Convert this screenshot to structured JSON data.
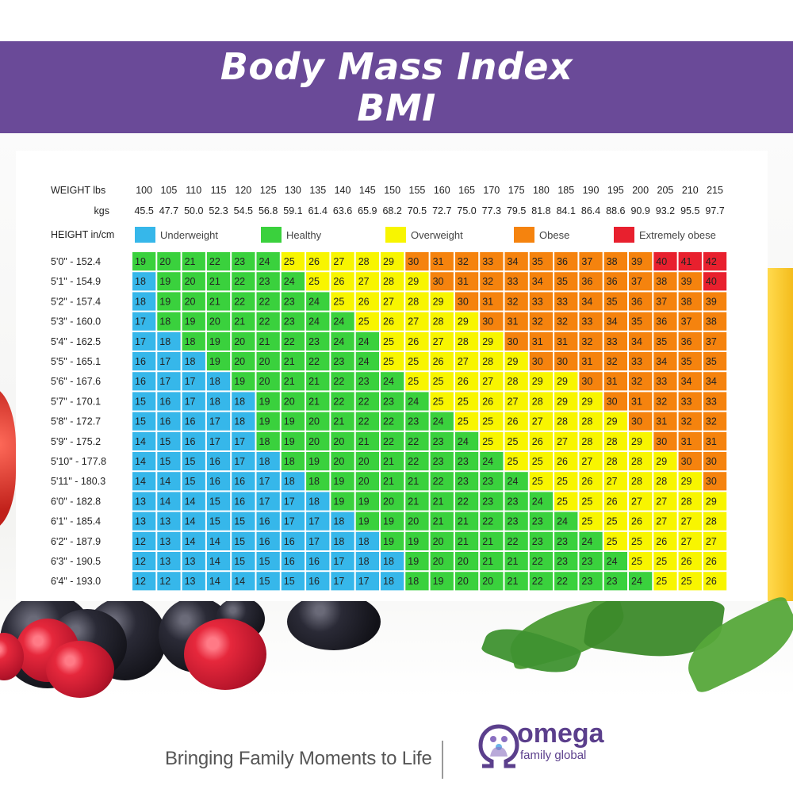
{
  "title": {
    "line1": "Body Mass Index",
    "line2": "BMI"
  },
  "footer": {
    "tagline": "Bringing Family Moments to Life",
    "logo_word": "omega",
    "logo_sub": "family global"
  },
  "colors": {
    "banner": "#6a4a98",
    "underweight": "#36b7ea",
    "healthy": "#3ad13d",
    "overweight": "#f8f500",
    "obese": "#f5830e",
    "extremely_obese": "#e8202e"
  },
  "chart_data": {
    "type": "table",
    "weight_header": "WEIGHT lbs",
    "kgs_header": "kgs",
    "height_header": "HEIGHT in/cm",
    "lbs": [
      "100",
      "105",
      "110",
      "115",
      "120",
      "125",
      "130",
      "135",
      "140",
      "145",
      "150",
      "155",
      "160",
      "165",
      "170",
      "175",
      "180",
      "185",
      "190",
      "195",
      "200",
      "205",
      "210",
      "215"
    ],
    "kgs": [
      "45.5",
      "47.7",
      "50.0",
      "52.3",
      "54.5",
      "56.8",
      "59.1",
      "61.4",
      "63.6",
      "65.9",
      "68.2",
      "70.5",
      "72.7",
      "75.0",
      "77.3",
      "79.5",
      "81.8",
      "84.1",
      "86.4",
      "88.6",
      "90.9",
      "93.2",
      "95.5",
      "97.7"
    ],
    "legend": [
      {
        "label": "Underweight",
        "category": "underweight"
      },
      {
        "label": "Healthy",
        "category": "healthy"
      },
      {
        "label": "Overweight",
        "category": "overweight"
      },
      {
        "label": "Obese",
        "category": "obese"
      },
      {
        "label": "Extremely obese",
        "category": "extremely_obese"
      }
    ],
    "heights": [
      "5'0\"  -  152.4",
      "5'1\"  -  154.9",
      "5'2\"  -  157.4",
      "5'3\"  -  160.0",
      "5'4\"  -  162.5",
      "5'5\"  -  165.1",
      "5'6\"  -  167.6",
      "5'7\"  -  170.1",
      "5'8\"  -  172.7",
      "5'9\"  -  175.2",
      "5'10\" - 177.8",
      "5'11\" - 180.3",
      "6'0\"  -  182.8",
      "6'1\"  -  185.4",
      "6'2\"  -  187.9",
      "6'3\"  -  190.5",
      "6'4\"  -  193.0"
    ],
    "values": [
      [
        19,
        20,
        21,
        22,
        23,
        24,
        25,
        26,
        27,
        28,
        29,
        30,
        31,
        32,
        33,
        34,
        35,
        36,
        37,
        38,
        39,
        40,
        41,
        42
      ],
      [
        18,
        19,
        20,
        21,
        22,
        23,
        24,
        25,
        26,
        27,
        28,
        29,
        30,
        31,
        32,
        33,
        34,
        35,
        36,
        36,
        37,
        38,
        39,
        40
      ],
      [
        18,
        19,
        20,
        21,
        22,
        22,
        23,
        24,
        25,
        26,
        27,
        28,
        29,
        30,
        31,
        32,
        33,
        33,
        34,
        35,
        36,
        37,
        38,
        39
      ],
      [
        17,
        18,
        19,
        20,
        21,
        22,
        23,
        24,
        24,
        25,
        26,
        27,
        28,
        29,
        30,
        31,
        32,
        32,
        33,
        34,
        35,
        36,
        37,
        38
      ],
      [
        17,
        18,
        18,
        19,
        20,
        21,
        22,
        23,
        24,
        24,
        25,
        26,
        27,
        28,
        29,
        30,
        31,
        31,
        32,
        33,
        34,
        35,
        36,
        37
      ],
      [
        16,
        17,
        18,
        19,
        20,
        20,
        21,
        22,
        23,
        24,
        25,
        25,
        26,
        27,
        28,
        29,
        30,
        30,
        31,
        32,
        33,
        34,
        35,
        35
      ],
      [
        16,
        17,
        17,
        18,
        19,
        20,
        21,
        21,
        22,
        23,
        24,
        25,
        25,
        26,
        27,
        28,
        29,
        29,
        30,
        31,
        32,
        33,
        34,
        34
      ],
      [
        15,
        16,
        17,
        18,
        18,
        19,
        20,
        21,
        22,
        22,
        23,
        24,
        25,
        25,
        26,
        27,
        28,
        29,
        29,
        30,
        31,
        32,
        33,
        33
      ],
      [
        15,
        16,
        16,
        17,
        18,
        19,
        19,
        20,
        21,
        22,
        22,
        23,
        24,
        25,
        25,
        26,
        27,
        28,
        28,
        29,
        30,
        31,
        32,
        32
      ],
      [
        14,
        15,
        16,
        17,
        17,
        18,
        19,
        20,
        20,
        21,
        22,
        22,
        23,
        24,
        25,
        25,
        26,
        27,
        28,
        28,
        29,
        30,
        31,
        31
      ],
      [
        14,
        15,
        15,
        16,
        17,
        18,
        18,
        19,
        20,
        20,
        21,
        22,
        23,
        23,
        24,
        25,
        25,
        26,
        27,
        28,
        28,
        29,
        30,
        30
      ],
      [
        14,
        14,
        15,
        16,
        16,
        17,
        18,
        18,
        19,
        20,
        21,
        21,
        22,
        23,
        23,
        24,
        25,
        25,
        26,
        27,
        28,
        28,
        29,
        30
      ],
      [
        13,
        14,
        14,
        15,
        16,
        17,
        17,
        18,
        19,
        19,
        20,
        21,
        21,
        22,
        23,
        23,
        24,
        25,
        25,
        26,
        27,
        27,
        28,
        29
      ],
      [
        13,
        13,
        14,
        15,
        15,
        16,
        17,
        17,
        18,
        19,
        19,
        20,
        21,
        21,
        22,
        23,
        23,
        24,
        25,
        25,
        26,
        27,
        27,
        28
      ],
      [
        12,
        13,
        14,
        14,
        15,
        16,
        16,
        17,
        18,
        18,
        19,
        19,
        20,
        21,
        21,
        22,
        23,
        23,
        24,
        25,
        25,
        26,
        27,
        27
      ],
      [
        12,
        13,
        13,
        14,
        15,
        15,
        16,
        16,
        17,
        18,
        18,
        19,
        20,
        20,
        21,
        21,
        22,
        23,
        23,
        24,
        25,
        25,
        26,
        26
      ],
      [
        12,
        12,
        13,
        14,
        14,
        15,
        15,
        16,
        17,
        17,
        18,
        18,
        19,
        20,
        20,
        21,
        22,
        22,
        23,
        23,
        24,
        25,
        25,
        26
      ]
    ],
    "categories": [
      [
        "healthy",
        "healthy",
        "healthy",
        "healthy",
        "healthy",
        "healthy",
        "overweight",
        "overweight",
        "overweight",
        "overweight",
        "overweight",
        "obese",
        "obese",
        "obese",
        "obese",
        "obese",
        "obese",
        "obese",
        "obese",
        "obese",
        "obese",
        "extremely_obese",
        "extremely_obese",
        "extremely_obese"
      ],
      [
        "underweight",
        "healthy",
        "healthy",
        "healthy",
        "healthy",
        "healthy",
        "healthy",
        "overweight",
        "overweight",
        "overweight",
        "overweight",
        "overweight",
        "obese",
        "obese",
        "obese",
        "obese",
        "obese",
        "obese",
        "obese",
        "obese",
        "obese",
        "obese",
        "obese",
        "extremely_obese"
      ],
      [
        "underweight",
        "healthy",
        "healthy",
        "healthy",
        "healthy",
        "healthy",
        "healthy",
        "healthy",
        "overweight",
        "overweight",
        "overweight",
        "overweight",
        "overweight",
        "obese",
        "obese",
        "obese",
        "obese",
        "obese",
        "obese",
        "obese",
        "obese",
        "obese",
        "obese",
        "obese"
      ],
      [
        "underweight",
        "healthy",
        "healthy",
        "healthy",
        "healthy",
        "healthy",
        "healthy",
        "healthy",
        "healthy",
        "overweight",
        "overweight",
        "overweight",
        "overweight",
        "overweight",
        "obese",
        "obese",
        "obese",
        "obese",
        "obese",
        "obese",
        "obese",
        "obese",
        "obese",
        "obese"
      ],
      [
        "underweight",
        "underweight",
        "healthy",
        "healthy",
        "healthy",
        "healthy",
        "healthy",
        "healthy",
        "healthy",
        "healthy",
        "overweight",
        "overweight",
        "overweight",
        "overweight",
        "overweight",
        "obese",
        "obese",
        "obese",
        "obese",
        "obese",
        "obese",
        "obese",
        "obese",
        "obese"
      ],
      [
        "underweight",
        "underweight",
        "underweight",
        "healthy",
        "healthy",
        "healthy",
        "healthy",
        "healthy",
        "healthy",
        "healthy",
        "overweight",
        "overweight",
        "overweight",
        "overweight",
        "overweight",
        "overweight",
        "obese",
        "obese",
        "obese",
        "obese",
        "obese",
        "obese",
        "obese",
        "obese"
      ],
      [
        "underweight",
        "underweight",
        "underweight",
        "underweight",
        "healthy",
        "healthy",
        "healthy",
        "healthy",
        "healthy",
        "healthy",
        "healthy",
        "overweight",
        "overweight",
        "overweight",
        "overweight",
        "overweight",
        "overweight",
        "overweight",
        "obese",
        "obese",
        "obese",
        "obese",
        "obese",
        "obese"
      ],
      [
        "underweight",
        "underweight",
        "underweight",
        "underweight",
        "underweight",
        "healthy",
        "healthy",
        "healthy",
        "healthy",
        "healthy",
        "healthy",
        "healthy",
        "overweight",
        "overweight",
        "overweight",
        "overweight",
        "overweight",
        "overweight",
        "overweight",
        "obese",
        "obese",
        "obese",
        "obese",
        "obese"
      ],
      [
        "underweight",
        "underweight",
        "underweight",
        "underweight",
        "underweight",
        "healthy",
        "healthy",
        "healthy",
        "healthy",
        "healthy",
        "healthy",
        "healthy",
        "healthy",
        "overweight",
        "overweight",
        "overweight",
        "overweight",
        "overweight",
        "overweight",
        "overweight",
        "obese",
        "obese",
        "obese",
        "obese"
      ],
      [
        "underweight",
        "underweight",
        "underweight",
        "underweight",
        "underweight",
        "healthy",
        "healthy",
        "healthy",
        "healthy",
        "healthy",
        "healthy",
        "healthy",
        "healthy",
        "healthy",
        "overweight",
        "overweight",
        "overweight",
        "overweight",
        "overweight",
        "overweight",
        "overweight",
        "obese",
        "obese",
        "obese"
      ],
      [
        "underweight",
        "underweight",
        "underweight",
        "underweight",
        "underweight",
        "underweight",
        "healthy",
        "healthy",
        "healthy",
        "healthy",
        "healthy",
        "healthy",
        "healthy",
        "healthy",
        "healthy",
        "overweight",
        "overweight",
        "overweight",
        "overweight",
        "overweight",
        "overweight",
        "overweight",
        "obese",
        "obese"
      ],
      [
        "underweight",
        "underweight",
        "underweight",
        "underweight",
        "underweight",
        "underweight",
        "underweight",
        "healthy",
        "healthy",
        "healthy",
        "healthy",
        "healthy",
        "healthy",
        "healthy",
        "healthy",
        "healthy",
        "overweight",
        "overweight",
        "overweight",
        "overweight",
        "overweight",
        "overweight",
        "overweight",
        "obese"
      ],
      [
        "underweight",
        "underweight",
        "underweight",
        "underweight",
        "underweight",
        "underweight",
        "underweight",
        "underweight",
        "healthy",
        "healthy",
        "healthy",
        "healthy",
        "healthy",
        "healthy",
        "healthy",
        "healthy",
        "healthy",
        "overweight",
        "overweight",
        "overweight",
        "overweight",
        "overweight",
        "overweight",
        "overweight"
      ],
      [
        "underweight",
        "underweight",
        "underweight",
        "underweight",
        "underweight",
        "underweight",
        "underweight",
        "underweight",
        "underweight",
        "healthy",
        "healthy",
        "healthy",
        "healthy",
        "healthy",
        "healthy",
        "healthy",
        "healthy",
        "healthy",
        "overweight",
        "overweight",
        "overweight",
        "overweight",
        "overweight",
        "overweight"
      ],
      [
        "underweight",
        "underweight",
        "underweight",
        "underweight",
        "underweight",
        "underweight",
        "underweight",
        "underweight",
        "underweight",
        "underweight",
        "healthy",
        "healthy",
        "healthy",
        "healthy",
        "healthy",
        "healthy",
        "healthy",
        "healthy",
        "healthy",
        "overweight",
        "overweight",
        "overweight",
        "overweight",
        "overweight"
      ],
      [
        "underweight",
        "underweight",
        "underweight",
        "underweight",
        "underweight",
        "underweight",
        "underweight",
        "underweight",
        "underweight",
        "underweight",
        "underweight",
        "healthy",
        "healthy",
        "healthy",
        "healthy",
        "healthy",
        "healthy",
        "healthy",
        "healthy",
        "healthy",
        "overweight",
        "overweight",
        "overweight",
        "overweight"
      ],
      [
        "underweight",
        "underweight",
        "underweight",
        "underweight",
        "underweight",
        "underweight",
        "underweight",
        "underweight",
        "underweight",
        "underweight",
        "underweight",
        "healthy",
        "healthy",
        "healthy",
        "healthy",
        "healthy",
        "healthy",
        "healthy",
        "healthy",
        "healthy",
        "healthy",
        "overweight",
        "overweight",
        "overweight"
      ]
    ]
  }
}
